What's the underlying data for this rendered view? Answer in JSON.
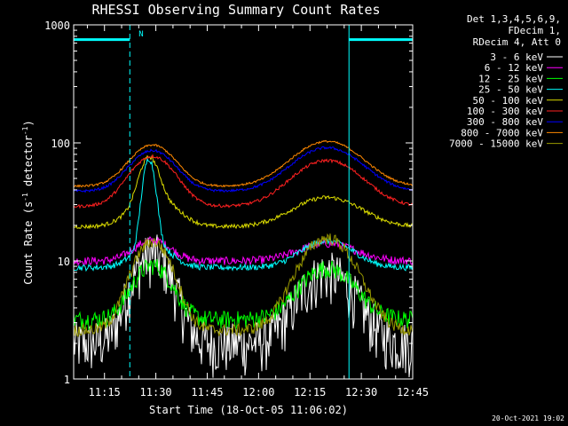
{
  "chart_data": {
    "type": "line",
    "title": "RHESSI Observing Summary Count Rates",
    "xlabel": "Start Time (18-Oct-05 11:06:02)",
    "ylabel_parts": [
      "Count Rate (s",
      "-1",
      " detector",
      "-1",
      ")"
    ],
    "y_scale": "log",
    "ylim": [
      1,
      1000
    ],
    "x_start_minutes_after_11": 6.0,
    "x_end_minutes_after_11": 105.0,
    "x_ticks": [
      {
        "minutes": 15,
        "label": "11:15"
      },
      {
        "minutes": 30,
        "label": "11:30"
      },
      {
        "minutes": 45,
        "label": "11:45"
      },
      {
        "minutes": 60,
        "label": "12:00"
      },
      {
        "minutes": 75,
        "label": "12:15"
      },
      {
        "minutes": 90,
        "label": "12:30"
      },
      {
        "minutes": 105,
        "label": "12:45"
      }
    ],
    "y_ticks": [
      {
        "value": 1,
        "label": "1"
      },
      {
        "value": 10,
        "label": "10"
      },
      {
        "value": 100,
        "label": "100"
      },
      {
        "value": 1000,
        "label": "1000"
      }
    ],
    "info_lines": [
      "Det 1,3,4,5,6,9,",
      "FDecim 1,",
      "RDecim 4, Att 0"
    ],
    "legend_position": "right",
    "series": [
      {
        "name": "3 - 6 keV",
        "color": "#ffffff",
        "base": 2.0,
        "peaks": [
          [
            29,
            5,
            9.5
          ],
          [
            80,
            7,
            6
          ]
        ],
        "jitter": 0.5
      },
      {
        "name": "6 - 12 keV",
        "color": "#ff00ff",
        "base": 10.0,
        "peaks": [
          [
            29,
            5,
            5
          ],
          [
            80,
            8,
            4
          ]
        ],
        "jitter": 0.08
      },
      {
        "name": "12 - 25 keV",
        "color": "#00ff00",
        "base": 3.2,
        "peaks": [
          [
            29,
            5,
            6
          ],
          [
            80,
            7,
            5.5
          ]
        ],
        "jitter": 0.18
      },
      {
        "name": "25 - 50 keV",
        "color": "#00ffff",
        "base": 8.8,
        "peaks": [
          [
            28,
            1.6,
            60
          ],
          [
            29,
            5,
            5
          ],
          [
            80,
            7,
            6
          ]
        ],
        "jitter": 0.06
      },
      {
        "name": "50 - 100 keV",
        "color": "#dddd00",
        "base": 19.5,
        "peaks": [
          [
            28,
            2.5,
            42
          ],
          [
            29.5,
            6,
            15
          ],
          [
            80,
            9,
            15
          ]
        ],
        "jitter": 0.04
      },
      {
        "name": "100 - 300 keV",
        "color": "#ff2020",
        "base": 29.0,
        "peaks": [
          [
            29,
            6,
            48
          ],
          [
            80,
            9,
            42
          ]
        ],
        "jitter": 0.03
      },
      {
        "name": "300 - 800 keV",
        "color": "#0000ff",
        "base": 39.0,
        "peaks": [
          [
            29,
            6,
            47
          ],
          [
            80,
            9,
            52
          ]
        ],
        "jitter": 0.025
      },
      {
        "name": "800 - 7000 keV",
        "color": "#ff8800",
        "base": 43.0,
        "peaks": [
          [
            29,
            6,
            53
          ],
          [
            80,
            9,
            60
          ]
        ],
        "jitter": 0.02
      },
      {
        "name": "7000 - 15000 keV",
        "color": "#999900",
        "base": 2.6,
        "peaks": [
          [
            29,
            5,
            12
          ],
          [
            80,
            7,
            13
          ]
        ],
        "jitter": 0.12
      }
    ],
    "flag_segments": [
      {
        "start": 6.0,
        "end": 22.4,
        "value": 750,
        "color": "#00ffff",
        "label": "N"
      },
      {
        "start": 86.4,
        "end": 105.0,
        "value": 750,
        "color": "#00ffff",
        "label": ""
      }
    ],
    "markers": [
      {
        "minutes": 22.4,
        "color": "#00ffff",
        "style": "dashed"
      },
      {
        "minutes": 86.4,
        "color": "#00ffff",
        "style": "solid"
      },
      {
        "minutes": 105.0,
        "color": "#00ffff",
        "style": "dashed"
      }
    ]
  },
  "footer": {
    "timestamp": "20-Oct-2021 19:02"
  }
}
